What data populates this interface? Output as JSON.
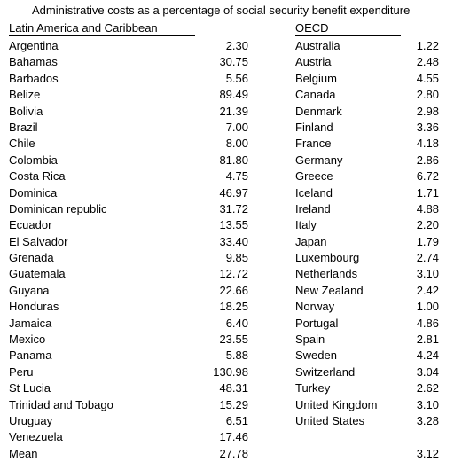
{
  "title": "Administrative costs as a percentage of social security benefit expenditure",
  "left": {
    "header": "Latin America and Caribbean",
    "rows": [
      {
        "name": "Argentina",
        "value": "2.30"
      },
      {
        "name": "Bahamas",
        "value": "30.75"
      },
      {
        "name": "Barbados",
        "value": "5.56"
      },
      {
        "name": "Belize",
        "value": "89.49"
      },
      {
        "name": "Bolivia",
        "value": "21.39"
      },
      {
        "name": "Brazil",
        "value": "7.00"
      },
      {
        "name": "Chile",
        "value": "8.00"
      },
      {
        "name": "Colombia",
        "value": "81.80"
      },
      {
        "name": "Costa Rica",
        "value": "4.75"
      },
      {
        "name": "Dominica",
        "value": "46.97"
      },
      {
        "name": "Dominican republic",
        "value": "31.72"
      },
      {
        "name": "Ecuador",
        "value": "13.55"
      },
      {
        "name": "El Salvador",
        "value": "33.40"
      },
      {
        "name": "Grenada",
        "value": "9.85"
      },
      {
        "name": "Guatemala",
        "value": "12.72"
      },
      {
        "name": "Guyana",
        "value": "22.66"
      },
      {
        "name": "Honduras",
        "value": "18.25"
      },
      {
        "name": "Jamaica",
        "value": "6.40"
      },
      {
        "name": "Mexico",
        "value": "23.55"
      },
      {
        "name": "Panama",
        "value": "5.88"
      },
      {
        "name": "Peru",
        "value": "130.98"
      },
      {
        "name": "St Lucia",
        "value": "48.31"
      },
      {
        "name": "Trinidad and Tobago",
        "value": "15.29"
      },
      {
        "name": "Uruguay",
        "value": "6.51"
      },
      {
        "name": "Venezuela",
        "value": "17.46"
      }
    ],
    "mean_label": "Mean",
    "mean_value": "27.78"
  },
  "right": {
    "header": "OECD",
    "rows": [
      {
        "name": "Australia",
        "value": "1.22"
      },
      {
        "name": "Austria",
        "value": "2.48"
      },
      {
        "name": "Belgium",
        "value": "4.55"
      },
      {
        "name": "Canada",
        "value": "2.80"
      },
      {
        "name": "Denmark",
        "value": "2.98"
      },
      {
        "name": "Finland",
        "value": "3.36"
      },
      {
        "name": "France",
        "value": "4.18"
      },
      {
        "name": "Germany",
        "value": "2.86"
      },
      {
        "name": "Greece",
        "value": "6.72"
      },
      {
        "name": "Iceland",
        "value": "1.71"
      },
      {
        "name": "Ireland",
        "value": "4.88"
      },
      {
        "name": "Italy",
        "value": "2.20"
      },
      {
        "name": "Japan",
        "value": "1.79"
      },
      {
        "name": "Luxembourg",
        "value": "2.74"
      },
      {
        "name": "Netherlands",
        "value": "3.10"
      },
      {
        "name": "New Zealand",
        "value": "2.42"
      },
      {
        "name": "Norway",
        "value": "1.00"
      },
      {
        "name": "Portugal",
        "value": "4.86"
      },
      {
        "name": "Spain",
        "value": "2.81"
      },
      {
        "name": "Sweden",
        "value": "4.24"
      },
      {
        "name": "Switzerland",
        "value": "3.04"
      },
      {
        "name": "Turkey",
        "value": "2.62"
      },
      {
        "name": "United Kingdom",
        "value": "3.10"
      },
      {
        "name": "United States",
        "value": "3.28"
      }
    ],
    "mean_value": "3.12"
  }
}
